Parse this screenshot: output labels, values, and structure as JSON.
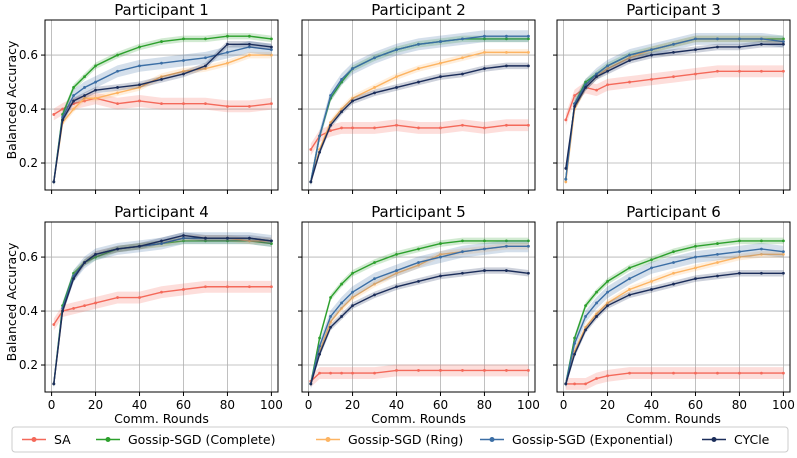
{
  "chart_data": {
    "type": "line",
    "shared_x_label": "Comm. Rounds",
    "shared_y_label": "Balanced Accuracy",
    "xlim": [
      -3,
      103
    ],
    "ylim": [
      0.1,
      0.73
    ],
    "x_ticks": [
      0,
      20,
      40,
      60,
      80,
      100
    ],
    "y_ticks": [
      0.2,
      0.4,
      0.6
    ],
    "grid": true,
    "legend_position": "bottom",
    "legend": [
      {
        "name": "SA",
        "color": "#f4695a"
      },
      {
        "name": "Gossip-SGD (Complete)",
        "color": "#2ca02c"
      },
      {
        "name": "Gossip-SGD (Ring)",
        "color": "#fdb462"
      },
      {
        "name": "Gossip-SGD (Exponential)",
        "color": "#3b6ea5"
      },
      {
        "name": "CYCle",
        "color": "#1b2d5a"
      }
    ],
    "panels": [
      {
        "title": "Participant 1",
        "series": [
          {
            "name": "SA",
            "x": [
              1,
              5,
              10,
              15,
              20,
              30,
              40,
              50,
              60,
              70,
              80,
              90,
              100
            ],
            "y": [
              0.38,
              0.4,
              0.42,
              0.43,
              0.44,
              0.42,
              0.43,
              0.42,
              0.42,
              0.42,
              0.41,
              0.41,
              0.42
            ]
          },
          {
            "name": "Gossip-SGD (Complete)",
            "x": [
              1,
              5,
              10,
              15,
              20,
              30,
              40,
              50,
              60,
              70,
              80,
              90,
              100
            ],
            "y": [
              0.13,
              0.38,
              0.48,
              0.52,
              0.56,
              0.6,
              0.63,
              0.65,
              0.66,
              0.66,
              0.67,
              0.67,
              0.66
            ]
          },
          {
            "name": "Gossip-SGD (Ring)",
            "x": [
              1,
              5,
              10,
              15,
              20,
              30,
              40,
              50,
              60,
              70,
              80,
              90,
              100
            ],
            "y": [
              0.13,
              0.35,
              0.4,
              0.44,
              0.44,
              0.46,
              0.48,
              0.52,
              0.54,
              0.55,
              0.57,
              0.6,
              0.6
            ]
          },
          {
            "name": "Gossip-SGD (Exponential)",
            "x": [
              1,
              5,
              10,
              15,
              20,
              30,
              40,
              50,
              60,
              70,
              80,
              90,
              100
            ],
            "y": [
              0.13,
              0.37,
              0.45,
              0.48,
              0.5,
              0.54,
              0.56,
              0.57,
              0.58,
              0.59,
              0.61,
              0.63,
              0.62
            ]
          },
          {
            "name": "CYCle",
            "x": [
              1,
              5,
              10,
              15,
              20,
              30,
              40,
              50,
              60,
              70,
              80,
              90,
              100
            ],
            "y": [
              0.13,
              0.36,
              0.43,
              0.45,
              0.47,
              0.48,
              0.49,
              0.51,
              0.53,
              0.56,
              0.64,
              0.64,
              0.63
            ]
          }
        ]
      },
      {
        "title": "Participant 2",
        "series": [
          {
            "name": "SA",
            "x": [
              1,
              5,
              10,
              15,
              20,
              30,
              40,
              50,
              60,
              70,
              80,
              90,
              100
            ],
            "y": [
              0.25,
              0.3,
              0.32,
              0.33,
              0.33,
              0.33,
              0.34,
              0.33,
              0.33,
              0.34,
              0.33,
              0.34,
              0.34
            ]
          },
          {
            "name": "Gossip-SGD (Complete)",
            "x": [
              1,
              5,
              10,
              15,
              20,
              30,
              40,
              50,
              60,
              70,
              80,
              90,
              100
            ],
            "y": [
              0.13,
              0.3,
              0.44,
              0.5,
              0.55,
              0.59,
              0.62,
              0.64,
              0.65,
              0.66,
              0.66,
              0.66,
              0.66
            ]
          },
          {
            "name": "Gossip-SGD (Ring)",
            "x": [
              1,
              5,
              10,
              15,
              20,
              30,
              40,
              50,
              60,
              70,
              80,
              90,
              100
            ],
            "y": [
              0.13,
              0.25,
              0.35,
              0.4,
              0.44,
              0.48,
              0.52,
              0.55,
              0.57,
              0.59,
              0.61,
              0.61,
              0.61
            ]
          },
          {
            "name": "Gossip-SGD (Exponential)",
            "x": [
              1,
              5,
              10,
              15,
              20,
              30,
              40,
              50,
              60,
              70,
              80,
              90,
              100
            ],
            "y": [
              0.13,
              0.3,
              0.45,
              0.51,
              0.55,
              0.59,
              0.62,
              0.64,
              0.65,
              0.66,
              0.67,
              0.67,
              0.67
            ]
          },
          {
            "name": "CYCle",
            "x": [
              1,
              5,
              10,
              15,
              20,
              30,
              40,
              50,
              60,
              70,
              80,
              90,
              100
            ],
            "y": [
              0.13,
              0.24,
              0.34,
              0.39,
              0.43,
              0.46,
              0.48,
              0.5,
              0.52,
              0.53,
              0.55,
              0.56,
              0.56
            ]
          }
        ]
      },
      {
        "title": "Participant 3",
        "series": [
          {
            "name": "SA",
            "x": [
              1,
              5,
              10,
              15,
              20,
              30,
              40,
              50,
              60,
              70,
              80,
              90,
              100
            ],
            "y": [
              0.36,
              0.45,
              0.48,
              0.47,
              0.49,
              0.5,
              0.51,
              0.52,
              0.53,
              0.54,
              0.54,
              0.54,
              0.54
            ]
          },
          {
            "name": "Gossip-SGD (Complete)",
            "x": [
              1,
              5,
              10,
              15,
              20,
              30,
              40,
              50,
              60,
              70,
              80,
              90,
              100
            ],
            "y": [
              0.14,
              0.42,
              0.5,
              0.53,
              0.56,
              0.6,
              0.62,
              0.64,
              0.66,
              0.66,
              0.66,
              0.66,
              0.66
            ]
          },
          {
            "name": "Gossip-SGD (Ring)",
            "x": [
              1,
              5,
              10,
              15,
              20,
              30,
              40,
              50,
              60,
              70,
              80,
              90,
              100
            ],
            "y": [
              0.13,
              0.4,
              0.48,
              0.52,
              0.55,
              0.59,
              0.62,
              0.64,
              0.66,
              0.66,
              0.66,
              0.66,
              0.65
            ]
          },
          {
            "name": "Gossip-SGD (Exponential)",
            "x": [
              1,
              5,
              10,
              15,
              20,
              30,
              40,
              50,
              60,
              70,
              80,
              90,
              100
            ],
            "y": [
              0.14,
              0.42,
              0.49,
              0.53,
              0.56,
              0.6,
              0.62,
              0.64,
              0.66,
              0.66,
              0.66,
              0.66,
              0.65
            ]
          },
          {
            "name": "CYCle",
            "x": [
              1,
              5,
              10,
              15,
              20,
              30,
              40,
              50,
              60,
              70,
              80,
              90,
              100
            ],
            "y": [
              0.18,
              0.41,
              0.48,
              0.52,
              0.54,
              0.58,
              0.6,
              0.61,
              0.62,
              0.63,
              0.63,
              0.64,
              0.64
            ]
          }
        ]
      },
      {
        "title": "Participant 4",
        "series": [
          {
            "name": "SA",
            "x": [
              1,
              5,
              10,
              15,
              20,
              30,
              40,
              50,
              60,
              70,
              80,
              90,
              100
            ],
            "y": [
              0.35,
              0.4,
              0.41,
              0.42,
              0.43,
              0.45,
              0.45,
              0.47,
              0.48,
              0.49,
              0.49,
              0.49,
              0.49
            ]
          },
          {
            "name": "Gossip-SGD (Complete)",
            "x": [
              1,
              5,
              10,
              15,
              20,
              30,
              40,
              50,
              60,
              70,
              80,
              90,
              100
            ],
            "y": [
              0.13,
              0.42,
              0.54,
              0.58,
              0.6,
              0.63,
              0.64,
              0.65,
              0.66,
              0.66,
              0.66,
              0.66,
              0.65
            ]
          },
          {
            "name": "Gossip-SGD (Ring)",
            "x": [
              1,
              5,
              10,
              15,
              20,
              30,
              40,
              50,
              60,
              70,
              80,
              90,
              100
            ],
            "y": [
              0.13,
              0.4,
              0.53,
              0.58,
              0.61,
              0.63,
              0.64,
              0.65,
              0.67,
              0.67,
              0.67,
              0.66,
              0.66
            ]
          },
          {
            "name": "Gossip-SGD (Exponential)",
            "x": [
              1,
              5,
              10,
              15,
              20,
              30,
              40,
              50,
              60,
              70,
              80,
              90,
              100
            ],
            "y": [
              0.13,
              0.41,
              0.53,
              0.58,
              0.61,
              0.63,
              0.64,
              0.65,
              0.67,
              0.67,
              0.67,
              0.67,
              0.66
            ]
          },
          {
            "name": "CYCle",
            "x": [
              1,
              5,
              10,
              15,
              20,
              30,
              40,
              50,
              60,
              70,
              80,
              90,
              100
            ],
            "y": [
              0.13,
              0.4,
              0.52,
              0.58,
              0.61,
              0.63,
              0.64,
              0.66,
              0.68,
              0.67,
              0.67,
              0.67,
              0.66
            ]
          }
        ]
      },
      {
        "title": "Participant 5",
        "series": [
          {
            "name": "SA",
            "x": [
              1,
              5,
              10,
              15,
              20,
              30,
              40,
              50,
              60,
              70,
              80,
              90,
              100
            ],
            "y": [
              0.14,
              0.17,
              0.17,
              0.17,
              0.17,
              0.17,
              0.18,
              0.18,
              0.18,
              0.18,
              0.18,
              0.18,
              0.18
            ]
          },
          {
            "name": "Gossip-SGD (Complete)",
            "x": [
              1,
              5,
              10,
              15,
              20,
              30,
              40,
              50,
              60,
              70,
              80,
              90,
              100
            ],
            "y": [
              0.13,
              0.3,
              0.45,
              0.5,
              0.54,
              0.58,
              0.61,
              0.63,
              0.65,
              0.66,
              0.66,
              0.66,
              0.66
            ]
          },
          {
            "name": "Gossip-SGD (Ring)",
            "x": [
              1,
              5,
              10,
              15,
              20,
              30,
              40,
              50,
              60,
              70,
              80,
              90,
              100
            ],
            "y": [
              0.13,
              0.25,
              0.36,
              0.41,
              0.45,
              0.5,
              0.54,
              0.57,
              0.61,
              0.62,
              0.63,
              0.64,
              0.64
            ]
          },
          {
            "name": "Gossip-SGD (Exponential)",
            "x": [
              1,
              5,
              10,
              15,
              20,
              30,
              40,
              50,
              60,
              70,
              80,
              90,
              100
            ],
            "y": [
              0.13,
              0.27,
              0.38,
              0.43,
              0.47,
              0.52,
              0.55,
              0.58,
              0.6,
              0.62,
              0.63,
              0.64,
              0.64
            ]
          },
          {
            "name": "CYCle",
            "x": [
              1,
              5,
              10,
              15,
              20,
              30,
              40,
              50,
              60,
              70,
              80,
              90,
              100
            ],
            "y": [
              0.13,
              0.24,
              0.34,
              0.38,
              0.42,
              0.46,
              0.49,
              0.51,
              0.53,
              0.54,
              0.55,
              0.55,
              0.54
            ]
          }
        ]
      },
      {
        "title": "Participant 6",
        "series": [
          {
            "name": "SA",
            "x": [
              1,
              5,
              10,
              15,
              20,
              30,
              40,
              50,
              60,
              70,
              80,
              90,
              100
            ],
            "y": [
              0.13,
              0.13,
              0.13,
              0.15,
              0.16,
              0.17,
              0.17,
              0.17,
              0.17,
              0.17,
              0.17,
              0.17,
              0.17
            ]
          },
          {
            "name": "Gossip-SGD (Complete)",
            "x": [
              1,
              5,
              10,
              15,
              20,
              30,
              40,
              50,
              60,
              70,
              80,
              90,
              100
            ],
            "y": [
              0.13,
              0.3,
              0.42,
              0.47,
              0.51,
              0.56,
              0.59,
              0.62,
              0.64,
              0.65,
              0.66,
              0.66,
              0.66
            ]
          },
          {
            "name": "Gossip-SGD (Ring)",
            "x": [
              1,
              5,
              10,
              15,
              20,
              30,
              40,
              50,
              60,
              70,
              80,
              90,
              100
            ],
            "y": [
              0.13,
              0.25,
              0.34,
              0.39,
              0.43,
              0.48,
              0.51,
              0.54,
              0.56,
              0.58,
              0.6,
              0.61,
              0.61
            ]
          },
          {
            "name": "Gossip-SGD (Exponential)",
            "x": [
              1,
              5,
              10,
              15,
              20,
              30,
              40,
              50,
              60,
              70,
              80,
              90,
              100
            ],
            "y": [
              0.13,
              0.28,
              0.38,
              0.43,
              0.47,
              0.52,
              0.56,
              0.58,
              0.6,
              0.61,
              0.62,
              0.63,
              0.62
            ]
          },
          {
            "name": "CYCle",
            "x": [
              1,
              5,
              10,
              15,
              20,
              30,
              40,
              50,
              60,
              70,
              80,
              90,
              100
            ],
            "y": [
              0.13,
              0.24,
              0.33,
              0.38,
              0.42,
              0.46,
              0.48,
              0.5,
              0.52,
              0.53,
              0.54,
              0.54,
              0.54
            ]
          }
        ]
      }
    ]
  }
}
